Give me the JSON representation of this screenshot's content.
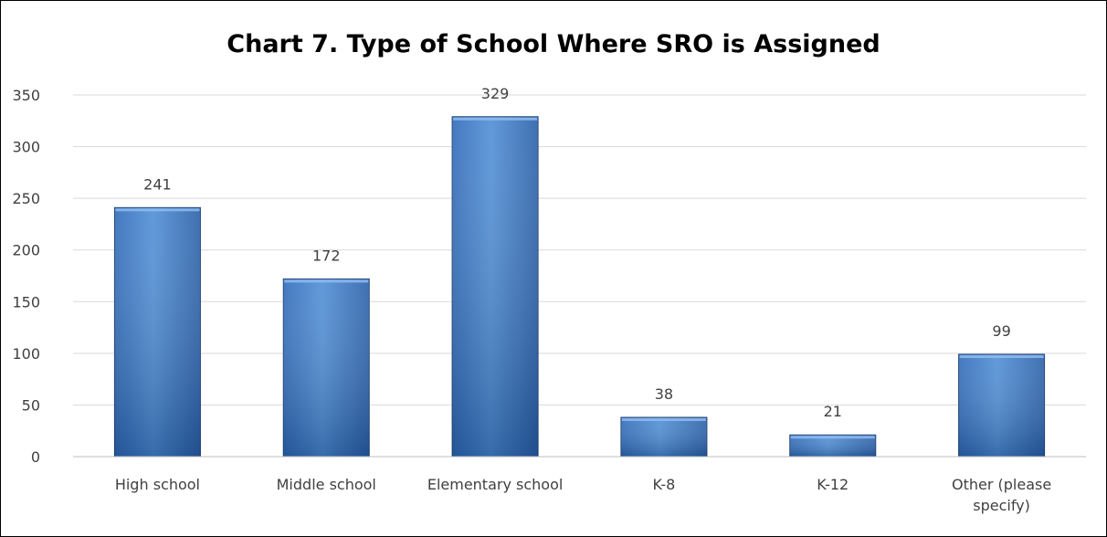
{
  "chart_data": {
    "type": "bar",
    "title": "Chart 7.  Type of School Where SRO is Assigned",
    "categories": [
      "High school",
      "Middle school",
      "Elementary school",
      "K-8",
      "K-12",
      "Other (please specify)"
    ],
    "category_lines": [
      [
        "High school"
      ],
      [
        "Middle school"
      ],
      [
        "Elementary school"
      ],
      [
        "K-8"
      ],
      [
        "K-12"
      ],
      [
        "Other (please",
        "specify)"
      ]
    ],
    "values": [
      241,
      172,
      329,
      38,
      21,
      99
    ],
    "data_labels": [
      "241",
      "172",
      "329",
      "38",
      "21",
      "99"
    ],
    "ylim": [
      0,
      350
    ],
    "yticks": [
      0,
      50,
      100,
      150,
      200,
      250,
      300,
      350
    ],
    "xlabel": "",
    "ylabel": "",
    "grid": true,
    "legend": "none",
    "colors": {
      "bar_light": "#4f8fd6",
      "bar_mid": "#3f7fcc",
      "bar_dark": "#1f4f8f",
      "bar_edge": "#1c3f73",
      "grid": "#d9d9d9",
      "axis": "#bfbfbf",
      "text": "#404040"
    }
  }
}
